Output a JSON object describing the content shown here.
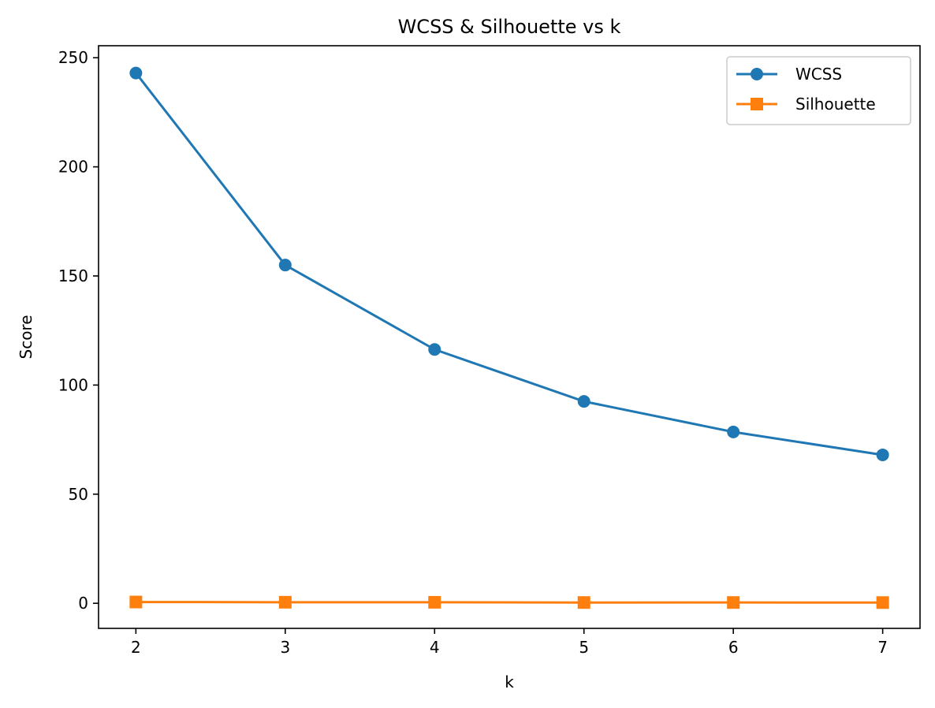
{
  "chart_data": {
    "type": "line",
    "title": "WCSS & Silhouette vs k",
    "xlabel": "k",
    "ylabel": "Score",
    "x": [
      2,
      3,
      4,
      5,
      6,
      7
    ],
    "xlim": [
      1.75,
      7.25
    ],
    "ylim": [
      -11.5,
      255.5
    ],
    "xticks": [
      2,
      3,
      4,
      5,
      6,
      7
    ],
    "yticks": [
      0,
      50,
      100,
      150,
      200,
      250
    ],
    "grid": false,
    "legend_position": "upper right",
    "series": [
      {
        "name": "WCSS",
        "values": [
          243.0,
          155.0,
          116.3,
          92.5,
          78.5,
          68.0
        ],
        "color": "#1f77b4",
        "marker": "circle"
      },
      {
        "name": "Silhouette",
        "values": [
          0.58,
          0.48,
          0.45,
          0.35,
          0.36,
          0.33
        ],
        "color": "#ff7f0e",
        "marker": "square"
      }
    ]
  }
}
